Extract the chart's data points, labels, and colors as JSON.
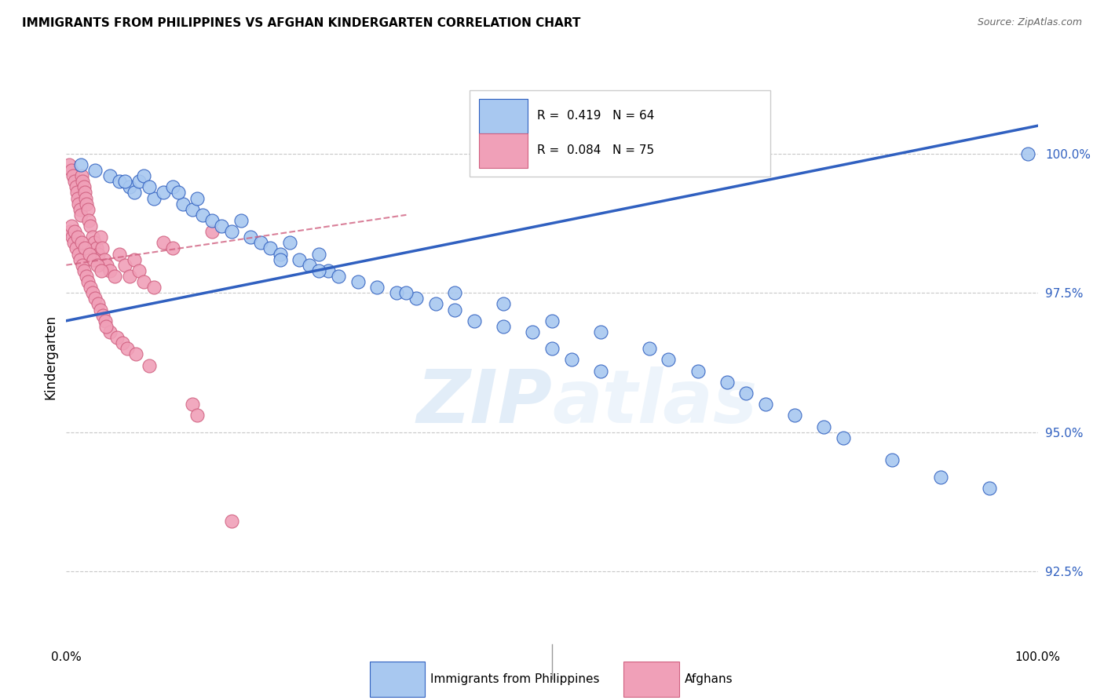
{
  "title": "IMMIGRANTS FROM PHILIPPINES VS AFGHAN KINDERGARTEN CORRELATION CHART",
  "source": "Source: ZipAtlas.com",
  "ylabel": "Kindergarten",
  "ytick_values": [
    92.5,
    95.0,
    97.5,
    100.0
  ],
  "xlim": [
    0.0,
    100.0
  ],
  "ylim": [
    91.2,
    101.5
  ],
  "color_blue": "#A8C8F0",
  "color_pink": "#F0A0B8",
  "trendline_blue": "#3060C0",
  "trendline_pink": "#D06080",
  "watermark_zip": "ZIP",
  "watermark_atlas": "atlas",
  "blue_x": [
    1.5,
    3.0,
    4.5,
    5.5,
    6.5,
    7.0,
    7.5,
    8.0,
    9.0,
    10.0,
    11.0,
    12.0,
    13.0,
    14.0,
    15.0,
    16.0,
    17.0,
    18.0,
    19.0,
    20.0,
    21.0,
    22.0,
    23.0,
    24.0,
    25.0,
    26.0,
    27.0,
    28.0,
    30.0,
    32.0,
    34.0,
    36.0,
    38.0,
    40.0,
    42.0,
    45.0,
    48.0,
    50.0,
    52.0,
    55.0,
    40.0,
    45.0,
    50.0,
    55.0,
    60.0,
    62.0,
    65.0,
    68.0,
    70.0,
    72.0,
    75.0,
    78.0,
    80.0,
    85.0,
    90.0,
    95.0,
    99.0,
    6.0,
    8.5,
    11.5,
    13.5,
    22.0,
    26.0,
    35.0
  ],
  "blue_y": [
    99.8,
    99.7,
    99.6,
    99.5,
    99.4,
    99.3,
    99.5,
    99.6,
    99.2,
    99.3,
    99.4,
    99.1,
    99.0,
    98.9,
    98.8,
    98.7,
    98.6,
    98.8,
    98.5,
    98.4,
    98.3,
    98.2,
    98.4,
    98.1,
    98.0,
    98.2,
    97.9,
    97.8,
    97.7,
    97.6,
    97.5,
    97.4,
    97.3,
    97.2,
    97.0,
    96.9,
    96.8,
    96.5,
    96.3,
    96.1,
    97.5,
    97.3,
    97.0,
    96.8,
    96.5,
    96.3,
    96.1,
    95.9,
    95.7,
    95.5,
    95.3,
    95.1,
    94.9,
    94.5,
    94.2,
    94.0,
    100.0,
    99.5,
    99.4,
    99.3,
    99.2,
    98.1,
    97.9,
    97.5
  ],
  "pink_x": [
    0.3,
    0.5,
    0.7,
    0.9,
    1.0,
    1.1,
    1.2,
    1.3,
    1.4,
    1.5,
    1.6,
    1.7,
    1.8,
    1.9,
    2.0,
    2.1,
    2.2,
    2.3,
    2.5,
    2.7,
    2.9,
    3.1,
    3.3,
    3.5,
    3.7,
    3.9,
    4.2,
    4.5,
    5.0,
    5.5,
    6.0,
    6.5,
    7.0,
    7.5,
    8.0,
    9.0,
    10.0,
    11.0,
    13.0,
    15.0,
    0.4,
    0.6,
    0.8,
    1.05,
    1.25,
    1.45,
    1.65,
    1.85,
    2.05,
    2.25,
    2.5,
    2.75,
    3.0,
    3.25,
    3.5,
    3.75,
    4.0,
    4.5,
    5.2,
    5.8,
    6.3,
    7.2,
    8.5,
    13.5,
    17.0,
    0.55,
    0.85,
    1.15,
    1.55,
    1.95,
    2.4,
    2.8,
    3.2,
    3.6,
    4.1
  ],
  "pink_y": [
    99.8,
    99.7,
    99.6,
    99.5,
    99.4,
    99.3,
    99.2,
    99.1,
    99.0,
    98.9,
    99.6,
    99.5,
    99.4,
    99.3,
    99.2,
    99.1,
    99.0,
    98.8,
    98.7,
    98.5,
    98.4,
    98.3,
    98.2,
    98.5,
    98.3,
    98.1,
    98.0,
    97.9,
    97.8,
    98.2,
    98.0,
    97.8,
    98.1,
    97.9,
    97.7,
    97.6,
    98.4,
    98.3,
    95.5,
    98.6,
    98.6,
    98.5,
    98.4,
    98.3,
    98.2,
    98.1,
    98.0,
    97.9,
    97.8,
    97.7,
    97.6,
    97.5,
    97.4,
    97.3,
    97.2,
    97.1,
    97.0,
    96.8,
    96.7,
    96.6,
    96.5,
    96.4,
    96.2,
    95.3,
    93.4,
    98.7,
    98.6,
    98.5,
    98.4,
    98.3,
    98.2,
    98.1,
    98.0,
    97.9,
    96.9
  ],
  "blue_trend": [
    0,
    100,
    97.0,
    100.5
  ],
  "pink_trend": [
    0,
    35,
    98.0,
    98.9
  ]
}
